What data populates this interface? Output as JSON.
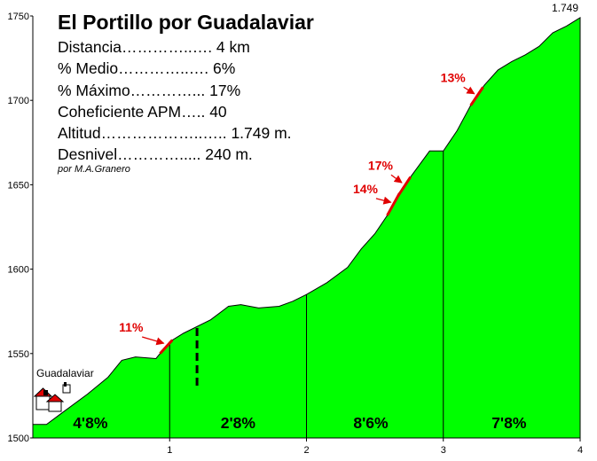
{
  "info": {
    "title": "El Portillo por Guadalaviar",
    "rows": [
      "Distancia…………..…. 4 km",
      "% Medio…………..…. 6%",
      "% Máximo…………...  17%",
      "Coheficiente APM…..  40",
      "Altitud………………..….. 1.749 m.",
      "Desnivel………….....  240 m."
    ],
    "author": "por M.A.Granero"
  },
  "chart_data": {
    "type": "area",
    "title": "El Portillo por Guadalaviar",
    "xlabel": "",
    "ylabel": "",
    "xlim": [
      0,
      4
    ],
    "ylim": [
      1500,
      1750
    ],
    "x_ticks": [
      "1",
      "2",
      "3",
      "4"
    ],
    "y_ticks": [
      "1500",
      "1550",
      "1600",
      "1650",
      "1700",
      "1750"
    ],
    "fill_color": "#00ff00",
    "profile": [
      {
        "x": 0.0,
        "y": 1508
      },
      {
        "x": 0.1,
        "y": 1508
      },
      {
        "x": 0.2,
        "y": 1514
      },
      {
        "x": 0.4,
        "y": 1526
      },
      {
        "x": 0.55,
        "y": 1536
      },
      {
        "x": 0.65,
        "y": 1546
      },
      {
        "x": 0.75,
        "y": 1548
      },
      {
        "x": 0.9,
        "y": 1547
      },
      {
        "x": 1.0,
        "y": 1557
      },
      {
        "x": 1.1,
        "y": 1562
      },
      {
        "x": 1.3,
        "y": 1570
      },
      {
        "x": 1.43,
        "y": 1578
      },
      {
        "x": 1.52,
        "y": 1579
      },
      {
        "x": 1.65,
        "y": 1577
      },
      {
        "x": 1.8,
        "y": 1578
      },
      {
        "x": 1.9,
        "y": 1581
      },
      {
        "x": 2.0,
        "y": 1585
      },
      {
        "x": 2.15,
        "y": 1592
      },
      {
        "x": 2.3,
        "y": 1601
      },
      {
        "x": 2.4,
        "y": 1612
      },
      {
        "x": 2.5,
        "y": 1621
      },
      {
        "x": 2.6,
        "y": 1633
      },
      {
        "x": 2.7,
        "y": 1648
      },
      {
        "x": 2.8,
        "y": 1659
      },
      {
        "x": 2.9,
        "y": 1670
      },
      {
        "x": 3.0,
        "y": 1670
      },
      {
        "x": 3.1,
        "y": 1682
      },
      {
        "x": 3.2,
        "y": 1697
      },
      {
        "x": 3.3,
        "y": 1709
      },
      {
        "x": 3.4,
        "y": 1718
      },
      {
        "x": 3.5,
        "y": 1723
      },
      {
        "x": 3.6,
        "y": 1727
      },
      {
        "x": 3.7,
        "y": 1732
      },
      {
        "x": 3.8,
        "y": 1740
      },
      {
        "x": 3.9,
        "y": 1744
      },
      {
        "x": 4.0,
        "y": 1749
      }
    ],
    "segment_dividers": [
      1,
      2,
      3
    ],
    "segments": [
      {
        "label": "4'8%",
        "x_center": 0.42
      },
      {
        "label": "2'8%",
        "x_center": 1.5
      },
      {
        "label": "8'6%",
        "x_center": 2.47
      },
      {
        "label": "7'8%",
        "x_center": 3.48
      }
    ],
    "peak_label": "1.749",
    "gradient_callouts": [
      {
        "label": "11%",
        "text_x": 0.63,
        "text_y": 1563,
        "point_x": 0.97,
        "point_y": 1556
      },
      {
        "label": "14%",
        "text_x": 2.34,
        "text_y": 1645,
        "point_x": 2.63,
        "point_y": 1641
      },
      {
        "label": "17%",
        "text_x": 2.45,
        "text_y": 1659,
        "point_x": 2.71,
        "point_y": 1650
      },
      {
        "label": "13%",
        "text_x": 2.98,
        "text_y": 1711,
        "point_x": 3.24,
        "point_y": 1701
      }
    ],
    "dashed_marker_x": 1.2,
    "place": {
      "label": "Guadalaviar",
      "x": 0.07
    }
  }
}
